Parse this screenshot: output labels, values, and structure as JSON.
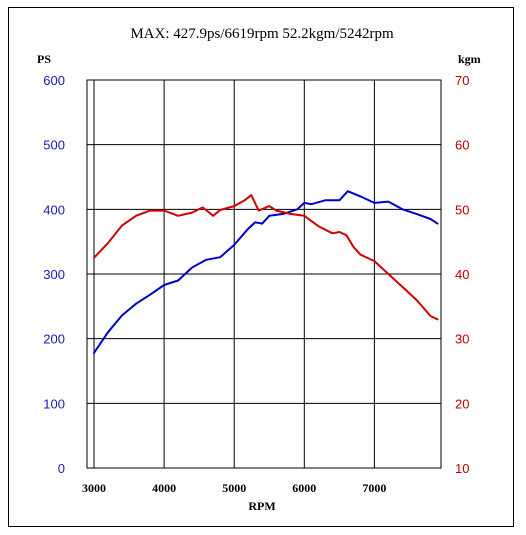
{
  "chart_data": {
    "type": "line",
    "title": "MAX: 427.9ps/6619rpm   52.2kgm/5242rpm",
    "xlabel": "RPM",
    "ylabel_left": "PS",
    "ylabel_right": "kgm",
    "xlim": [
      2900,
      7950
    ],
    "x_ticks": [
      3000,
      4000,
      5000,
      6000,
      7000
    ],
    "ylim_left": [
      0,
      600
    ],
    "y_ticks_left": [
      0,
      100,
      200,
      300,
      400,
      500,
      600
    ],
    "ylim_right": [
      10,
      70
    ],
    "y_ticks_right": [
      10,
      20,
      30,
      40,
      50,
      60,
      70
    ],
    "grid": true,
    "colors": {
      "ps": "#0000cc",
      "kgm": "#d00000",
      "left_axis": "#1a1ab8",
      "right_axis": "#c00000"
    },
    "series": [
      {
        "axis": "left",
        "x": [
          3000,
          3200,
          3400,
          3600,
          3800,
          4000,
          4200,
          4400,
          4600,
          4800,
          5000,
          5200,
          5300,
          5400,
          5500,
          5700,
          5900,
          6000,
          6100,
          6300,
          6500,
          6620,
          6800,
          7000,
          7200,
          7400,
          7600,
          7800,
          7900
        ],
        "values": [
          178,
          210,
          236,
          254,
          268,
          283,
          290,
          310,
          322,
          326,
          345,
          370,
          380,
          378,
          390,
          393,
          400,
          410,
          408,
          414,
          414,
          428,
          420,
          410,
          412,
          400,
          393,
          385,
          378
        ]
      },
      {
        "axis": "right",
        "x": [
          3000,
          3200,
          3400,
          3600,
          3800,
          4000,
          4200,
          4400,
          4550,
          4700,
          4800,
          5000,
          5150,
          5242,
          5350,
          5500,
          5600,
          5800,
          6000,
          6200,
          6400,
          6500,
          6600,
          6700,
          6800,
          7000,
          7200,
          7400,
          7600,
          7800,
          7900
        ],
        "values": [
          42.5,
          44.8,
          47.5,
          49,
          49.8,
          49.8,
          49,
          49.5,
          50.3,
          49,
          49.9,
          50.5,
          51.4,
          52.2,
          49.8,
          50.5,
          49.8,
          49.3,
          49,
          47.4,
          46.3,
          46.5,
          46,
          44.2,
          43,
          42,
          40,
          38,
          36,
          33.5,
          33
        ]
      }
    ]
  }
}
